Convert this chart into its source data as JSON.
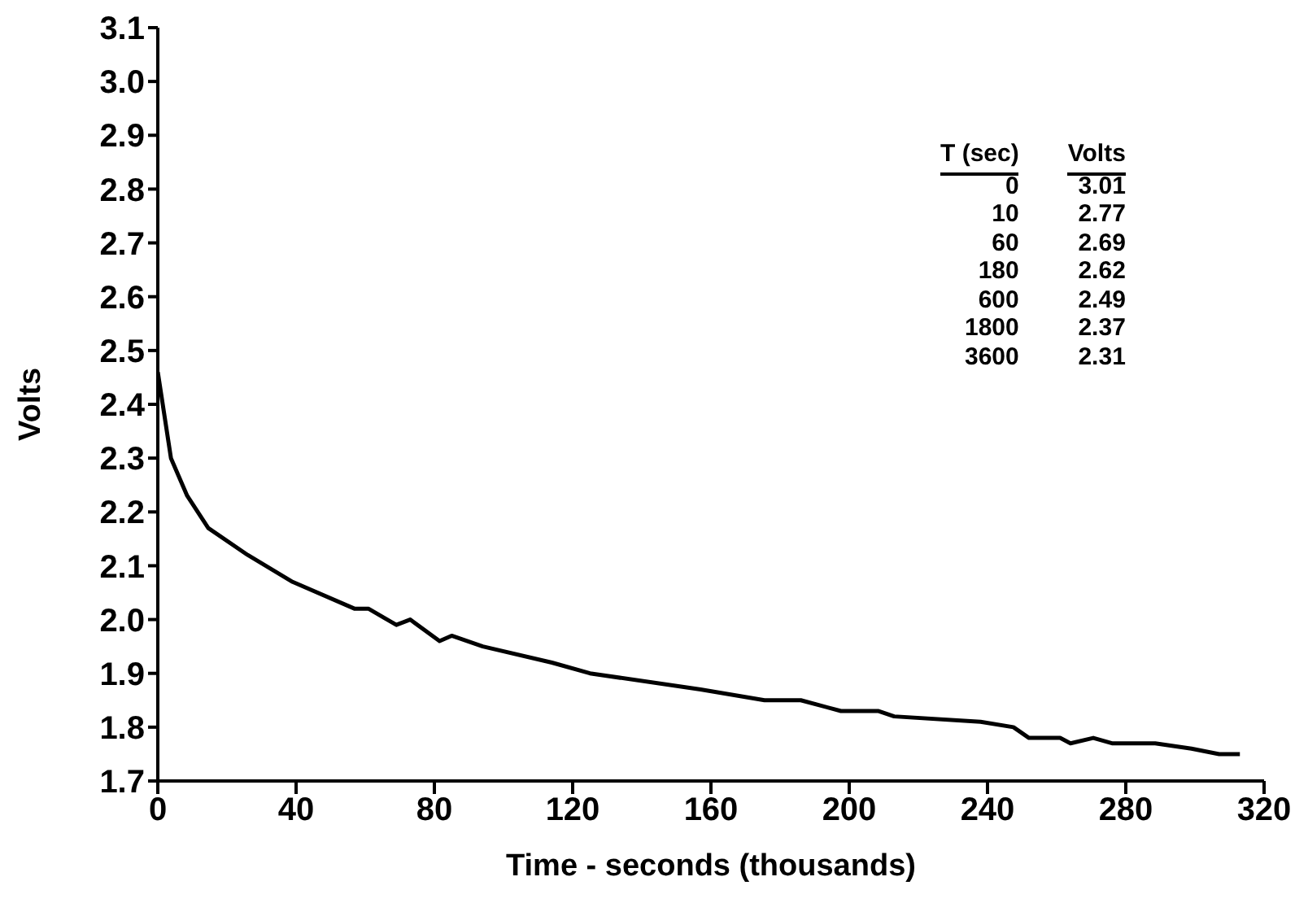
{
  "chart_data": {
    "type": "line",
    "xlabel": "Time - seconds (thousands)",
    "ylabel": "Volts",
    "x": [
      0,
      3.8,
      8.5,
      14.6,
      26,
      39,
      57,
      61,
      69,
      73,
      81.5,
      85,
      94,
      114,
      125,
      157,
      175.5,
      186,
      197.6,
      208.5,
      213,
      238,
      247.5,
      252,
      261,
      264,
      270.6,
      276,
      288.5,
      299,
      307,
      313
    ],
    "series": [
      {
        "color": "#000000",
        "values": [
          2.46,
          2.3,
          2.23,
          2.17,
          2.12,
          2.07,
          2.02,
          2.02,
          1.99,
          2.0,
          1.96,
          1.97,
          1.95,
          1.92,
          1.9,
          1.87,
          1.85,
          1.85,
          1.83,
          1.83,
          1.82,
          1.81,
          1.8,
          1.78,
          1.78,
          1.77,
          1.78,
          1.77,
          1.77,
          1.76,
          1.75,
          1.75
        ]
      }
    ],
    "xlim": [
      0,
      320
    ],
    "xticks": [
      0,
      40,
      80,
      120,
      160,
      200,
      240,
      280,
      320
    ],
    "ylim": [
      1.7,
      3.1
    ],
    "yticks": [
      {
        "value": 1.7,
        "label": "1.7"
      },
      {
        "value": 1.8,
        "label": "1.8"
      },
      {
        "value": 1.9,
        "label": "1.9"
      },
      {
        "value": 2.0,
        "label": "2.0"
      },
      {
        "value": 2.1,
        "label": "2.1"
      },
      {
        "value": 2.2,
        "label": "2.2"
      },
      {
        "value": 2.3,
        "label": "2.3"
      },
      {
        "value": 2.4,
        "label": "2.4"
      },
      {
        "value": 2.5,
        "label": "2.5"
      },
      {
        "value": 2.6,
        "label": "2.6"
      },
      {
        "value": 2.7,
        "label": "2.7"
      },
      {
        "value": 2.8,
        "label": "2.8"
      },
      {
        "value": 2.9,
        "label": "2.9"
      },
      {
        "value": 3.0,
        "label": "3.0"
      },
      {
        "value": 3.1,
        "label": "3.1"
      }
    ],
    "annotations": [
      "T (sec)",
      "Volts",
      "0",
      "3.01",
      "10",
      "2.77",
      "60",
      "2.69",
      "180",
      "2.62",
      "600",
      "2.49",
      "1800",
      "2.37",
      "3600",
      "2.31"
    ],
    "grid": false,
    "legend": false,
    "marker": "none",
    "line_style": "solid"
  }
}
